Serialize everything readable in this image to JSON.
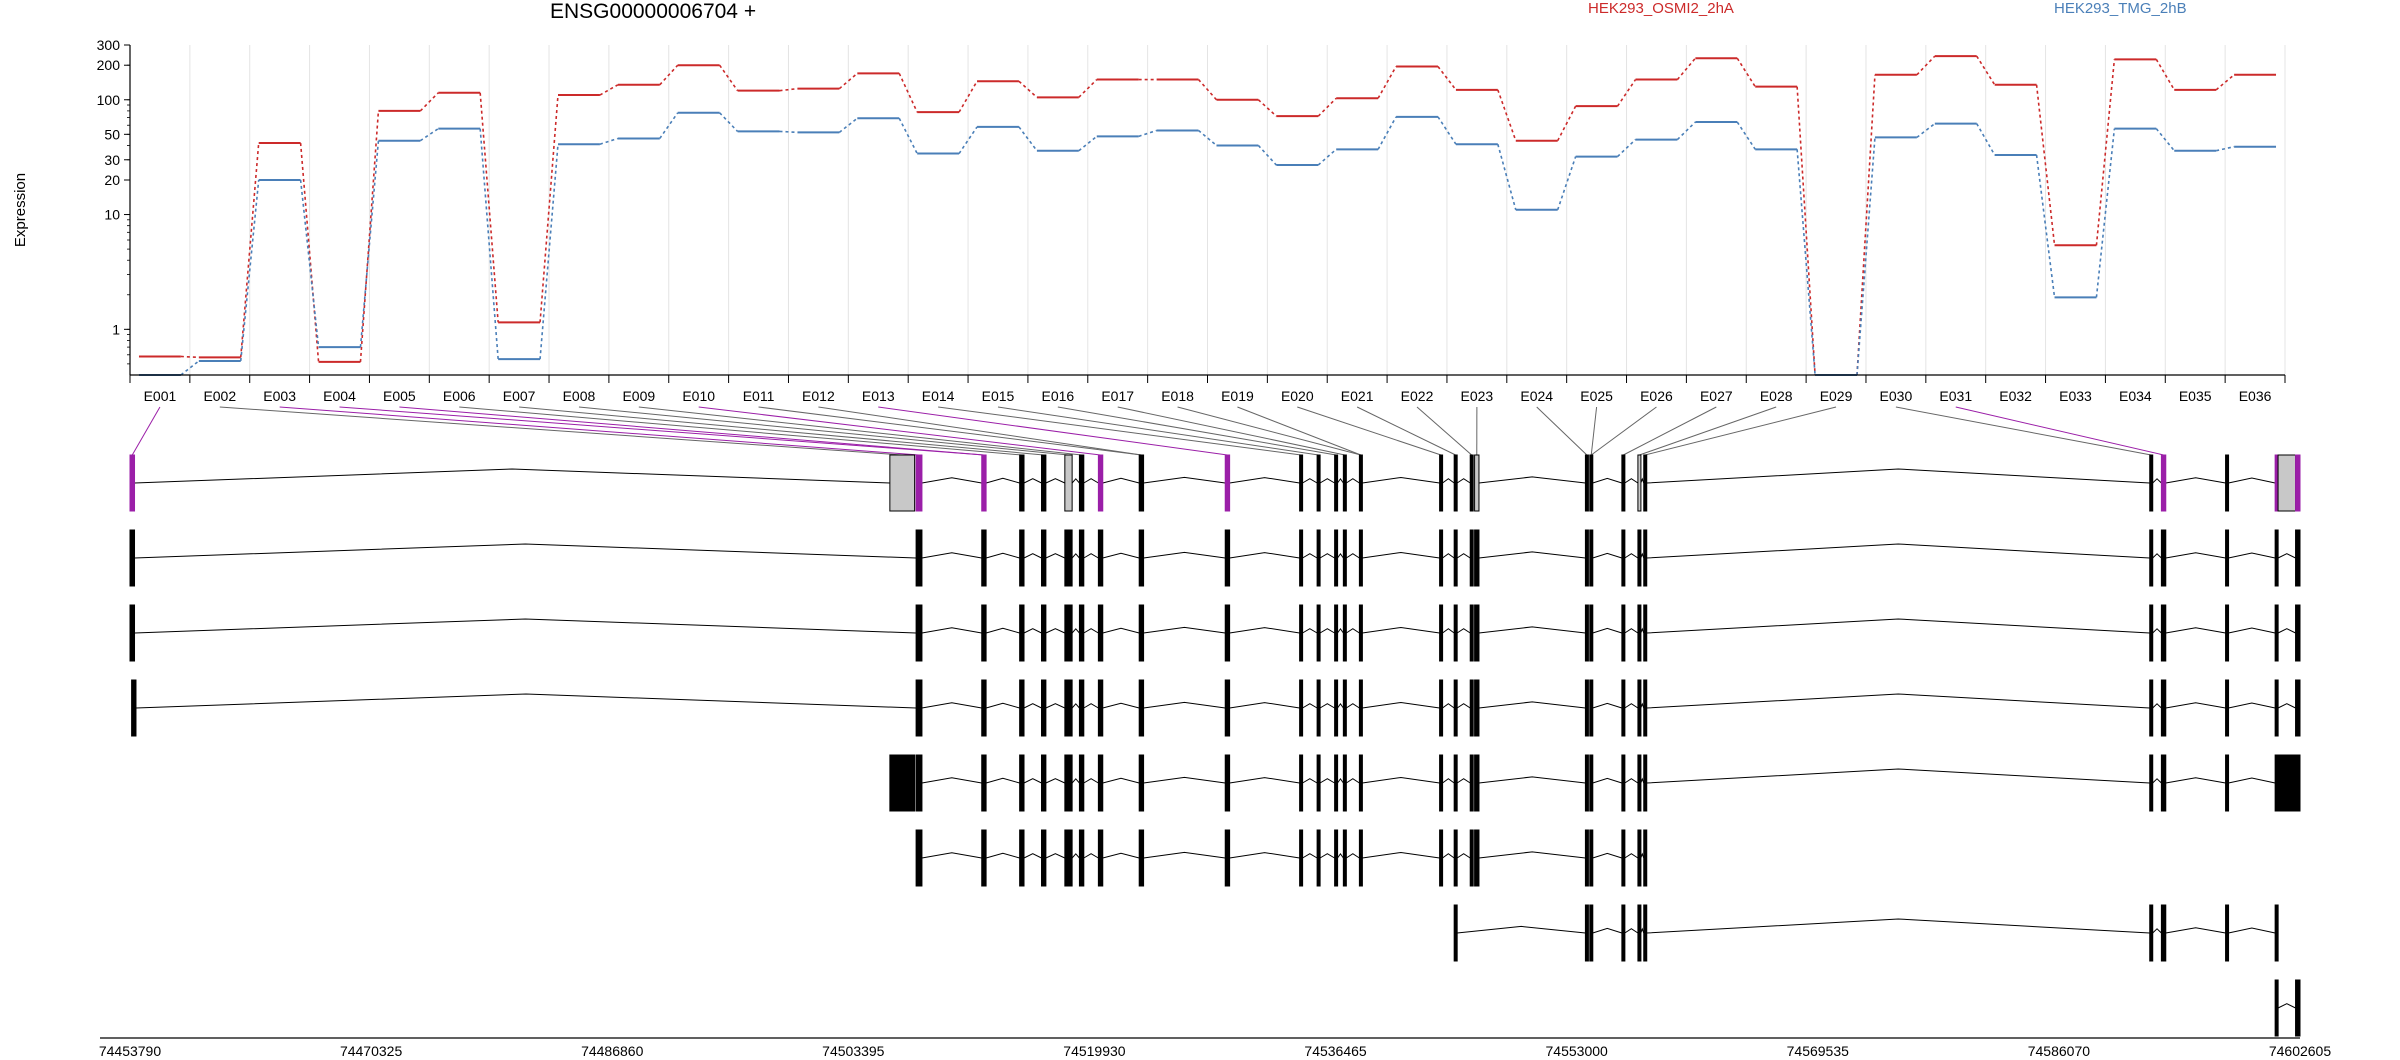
{
  "chart_data": {
    "type": "line",
    "title": "ENSG00000006704 +",
    "ylabel": "Expression",
    "xlabel": "",
    "y_scale": "log",
    "ylim": [
      0.4,
      300
    ],
    "y_ticks": [
      1,
      10,
      20,
      30,
      50,
      100,
      200,
      300
    ],
    "grid": "vertical",
    "legend_position": "top",
    "categories": [
      "E001",
      "E002",
      "E003",
      "E004",
      "E005",
      "E006",
      "E007",
      "E008",
      "E009",
      "E010",
      "E011",
      "E012",
      "E013",
      "E014",
      "E015",
      "E016",
      "E017",
      "E018",
      "E019",
      "E020",
      "E021",
      "E022",
      "E023",
      "E024",
      "E025",
      "E026",
      "E027",
      "E028",
      "E029",
      "E030",
      "E031",
      "E032",
      "E033",
      "E034",
      "E035",
      "E036"
    ],
    "series": [
      {
        "name": "HEK293_OSMI2_2hA",
        "color": "#cc2a2a",
        "values": [
          0.58,
          0.57,
          42,
          0.52,
          80,
          115,
          1.15,
          110,
          135,
          200,
          120,
          125,
          170,
          78,
          145,
          105,
          150,
          150,
          100,
          72,
          103,
          195,
          122,
          44,
          88,
          150,
          230,
          130,
          0.4,
          165,
          240,
          135,
          5.4,
          225,
          122,
          165
        ]
      },
      {
        "name": "HEK293_TMG_2hB",
        "color": "#4a7fb8",
        "values": [
          0.4,
          0.53,
          20,
          0.7,
          44,
          56,
          0.55,
          41,
          46,
          77,
          53,
          52,
          69,
          34,
          58,
          36,
          48,
          54,
          40,
          27,
          37,
          71,
          41,
          11,
          32,
          45,
          64,
          37,
          0.4,
          47,
          62,
          33,
          1.9,
          56,
          36,
          39
        ]
      }
    ],
    "exon_axis": {
      "ticks": [
        "74453790",
        "74470325",
        "74486860",
        "74503395",
        "74519930",
        "74536465",
        "74553000",
        "74569535",
        "74586070",
        "74602605"
      ]
    },
    "tracks": [
      {
        "exons": [
          [
            74453790,
            74454100,
            "highlight"
          ],
          [
            74505900,
            74507600,
            "collapsed"
          ],
          [
            74507700,
            74508100,
            "highlight"
          ],
          [
            74512200,
            74512500,
            "highlight"
          ],
          [
            74514800,
            74515100,
            "normal"
          ],
          [
            74516300,
            74516600,
            "normal"
          ],
          [
            74517900,
            74518400,
            "collapsed"
          ],
          [
            74518900,
            74519200,
            "normal"
          ],
          [
            74520200,
            74520500,
            "highlight"
          ],
          [
            74523000,
            74523300,
            "normal"
          ],
          [
            74528900,
            74529200,
            "highlight"
          ],
          [
            74534000,
            74534200,
            "normal"
          ],
          [
            74535200,
            74535400,
            "normal"
          ],
          [
            74536400,
            74536600,
            "normal"
          ],
          [
            74537000,
            74537200,
            "normal"
          ],
          [
            74538100,
            74538300,
            "normal"
          ],
          [
            74543600,
            74543800,
            "normal"
          ],
          [
            74544600,
            74544800,
            "normal"
          ],
          [
            74545700,
            74545900,
            "normal"
          ],
          [
            74546000,
            74546300,
            "collapsed"
          ],
          [
            74553600,
            74553800,
            "normal"
          ],
          [
            74553900,
            74554100,
            "normal"
          ],
          [
            74556100,
            74556300,
            "normal"
          ],
          [
            74557200,
            74557400,
            "collapsed"
          ],
          [
            74557600,
            74557800,
            "normal"
          ],
          [
            74592300,
            74592500,
            "normal"
          ],
          [
            74593100,
            74593400,
            "highlight"
          ],
          [
            74597500,
            74597700,
            "normal"
          ],
          [
            74600900,
            74601100,
            "highlight"
          ],
          [
            74601100,
            74602300,
            "collapsed"
          ],
          [
            74602300,
            74602605,
            "highlight"
          ]
        ]
      },
      {
        "exons": [
          [
            74453790,
            74454100
          ],
          [
            74507700,
            74508100
          ],
          [
            74512200,
            74512500
          ],
          [
            74514800,
            74515100
          ],
          [
            74516300,
            74516600
          ],
          [
            74517900,
            74518400
          ],
          [
            74518900,
            74519200
          ],
          [
            74520200,
            74520500
          ],
          [
            74523000,
            74523300
          ],
          [
            74528900,
            74529200
          ],
          [
            74534000,
            74534200
          ],
          [
            74535200,
            74535400
          ],
          [
            74536400,
            74536600
          ],
          [
            74537000,
            74537200
          ],
          [
            74538100,
            74538300
          ],
          [
            74543600,
            74543800
          ],
          [
            74544600,
            74544800
          ],
          [
            74545700,
            74545900
          ],
          [
            74546000,
            74546300
          ],
          [
            74553600,
            74553800
          ],
          [
            74553900,
            74554100
          ],
          [
            74556100,
            74556300
          ],
          [
            74557200,
            74557400
          ],
          [
            74557600,
            74557800
          ],
          [
            74592300,
            74592500
          ],
          [
            74593100,
            74593400
          ],
          [
            74597500,
            74597700
          ],
          [
            74600900,
            74601100
          ],
          [
            74602300,
            74602605
          ]
        ]
      },
      {
        "exons": [
          [
            74453790,
            74454100
          ],
          [
            74507700,
            74508100
          ],
          [
            74512200,
            74512500
          ],
          [
            74514800,
            74515100
          ],
          [
            74516300,
            74516600
          ],
          [
            74517900,
            74518400
          ],
          [
            74518900,
            74519200
          ],
          [
            74520200,
            74520500
          ],
          [
            74523000,
            74523300
          ],
          [
            74528900,
            74529200
          ],
          [
            74534000,
            74534200
          ],
          [
            74535200,
            74535400
          ],
          [
            74536400,
            74536600
          ],
          [
            74537000,
            74537200
          ],
          [
            74538100,
            74538300
          ],
          [
            74543600,
            74543800
          ],
          [
            74544600,
            74544800
          ],
          [
            74545700,
            74545900
          ],
          [
            74546000,
            74546300
          ],
          [
            74553600,
            74553800
          ],
          [
            74553900,
            74554100
          ],
          [
            74556100,
            74556300
          ],
          [
            74557200,
            74557400
          ],
          [
            74557600,
            74557800
          ],
          [
            74592300,
            74592500
          ],
          [
            74593100,
            74593400
          ],
          [
            74597500,
            74597700
          ],
          [
            74600900,
            74601100
          ],
          [
            74602300,
            74602605
          ]
        ]
      },
      {
        "exons": [
          [
            74453900,
            74454200
          ],
          [
            74507700,
            74508100
          ],
          [
            74512200,
            74512500
          ],
          [
            74514800,
            74515100
          ],
          [
            74516300,
            74516600
          ],
          [
            74517900,
            74518400
          ],
          [
            74518900,
            74519200
          ],
          [
            74520200,
            74520500
          ],
          [
            74523000,
            74523300
          ],
          [
            74528900,
            74529200
          ],
          [
            74534000,
            74534200
          ],
          [
            74535200,
            74535400
          ],
          [
            74536400,
            74536600
          ],
          [
            74537000,
            74537200
          ],
          [
            74538100,
            74538300
          ],
          [
            74543600,
            74543800
          ],
          [
            74544600,
            74544800
          ],
          [
            74545700,
            74545900
          ],
          [
            74546000,
            74546300
          ],
          [
            74553600,
            74553800
          ],
          [
            74553900,
            74554100
          ],
          [
            74556100,
            74556300
          ],
          [
            74557200,
            74557400
          ],
          [
            74557600,
            74557800
          ],
          [
            74592300,
            74592500
          ],
          [
            74593100,
            74593400
          ],
          [
            74597500,
            74597700
          ],
          [
            74600900,
            74601100
          ],
          [
            74602300,
            74602605
          ]
        ]
      },
      {
        "exons": [
          [
            74505900,
            74507600
          ],
          [
            74507700,
            74508100
          ],
          [
            74512200,
            74512500
          ],
          [
            74514800,
            74515100
          ],
          [
            74516300,
            74516600
          ],
          [
            74517900,
            74518400
          ],
          [
            74518900,
            74519200
          ],
          [
            74520200,
            74520500
          ],
          [
            74523000,
            74523300
          ],
          [
            74528900,
            74529200
          ],
          [
            74534000,
            74534200
          ],
          [
            74535200,
            74535400
          ],
          [
            74536400,
            74536600
          ],
          [
            74537000,
            74537200
          ],
          [
            74538100,
            74538300
          ],
          [
            74543600,
            74543800
          ],
          [
            74544600,
            74544800
          ],
          [
            74545700,
            74545900
          ],
          [
            74546000,
            74546300
          ],
          [
            74553600,
            74553800
          ],
          [
            74553900,
            74554100
          ],
          [
            74556100,
            74556300
          ],
          [
            74557200,
            74557400
          ],
          [
            74557600,
            74557800
          ],
          [
            74592300,
            74592500
          ],
          [
            74593100,
            74593400
          ],
          [
            74597500,
            74597700
          ],
          [
            74600900,
            74602605
          ]
        ]
      },
      {
        "exons": [
          [
            74507700,
            74508100
          ],
          [
            74512200,
            74512500
          ],
          [
            74514800,
            74515100
          ],
          [
            74516300,
            74516600
          ],
          [
            74517900,
            74518400
          ],
          [
            74518900,
            74519200
          ],
          [
            74520200,
            74520500
          ],
          [
            74523000,
            74523300
          ],
          [
            74528900,
            74529200
          ],
          [
            74534000,
            74534200
          ],
          [
            74535200,
            74535400
          ],
          [
            74536400,
            74536600
          ],
          [
            74537000,
            74537200
          ],
          [
            74538100,
            74538300
          ],
          [
            74543600,
            74543800
          ],
          [
            74544600,
            74544800
          ],
          [
            74545700,
            74545900
          ],
          [
            74546000,
            74546300
          ],
          [
            74553600,
            74553800
          ],
          [
            74553900,
            74554100
          ],
          [
            74556100,
            74556300
          ],
          [
            74557200,
            74557400
          ],
          [
            74557600,
            74557800
          ]
        ]
      },
      {
        "exons": [
          [
            74544600,
            74544800
          ],
          [
            74553600,
            74553800
          ],
          [
            74553900,
            74554100
          ],
          [
            74556100,
            74556300
          ],
          [
            74557200,
            74557400
          ],
          [
            74557600,
            74557800
          ],
          [
            74592300,
            74592500
          ],
          [
            74593100,
            74593400
          ],
          [
            74597500,
            74597700
          ],
          [
            74600900,
            74601100
          ]
        ]
      },
      {
        "exons": [
          [
            74600900,
            74601100
          ],
          [
            74602300,
            74602605
          ]
        ]
      }
    ]
  }
}
